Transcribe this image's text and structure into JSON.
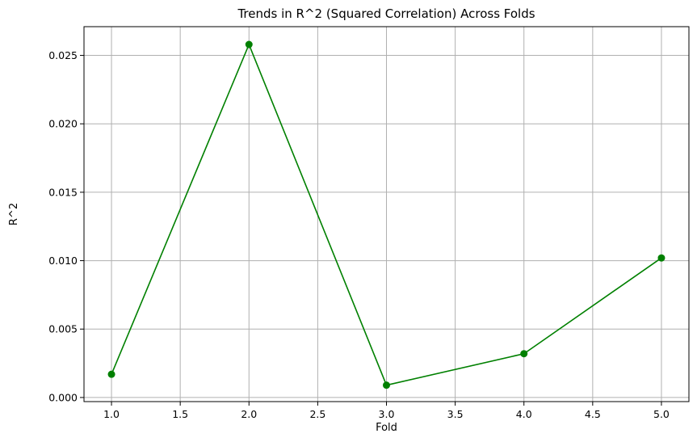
{
  "chart_data": {
    "type": "line",
    "title": "Trends in R^2 (Squared Correlation) Across Folds",
    "xlabel": "Fold",
    "ylabel": "R^2",
    "x": [
      1,
      2,
      3,
      4,
      5
    ],
    "series": [
      {
        "values": [
          0.0017,
          0.0258,
          0.0009,
          0.0032,
          0.0102
        ],
        "color": "#008000",
        "marker": "circle"
      }
    ],
    "xlim": [
      0.8,
      5.2
    ],
    "ylim": [
      -0.0003,
      0.0271
    ],
    "xticks": [
      "1.0",
      "1.5",
      "2.0",
      "2.5",
      "3.0",
      "3.5",
      "4.0",
      "4.5",
      "5.0"
    ],
    "yticks": [
      "0.000",
      "0.005",
      "0.010",
      "0.015",
      "0.020",
      "0.025"
    ],
    "grid": true,
    "colors": {
      "grid": "#b0b0b0",
      "axes": "#000000"
    }
  }
}
